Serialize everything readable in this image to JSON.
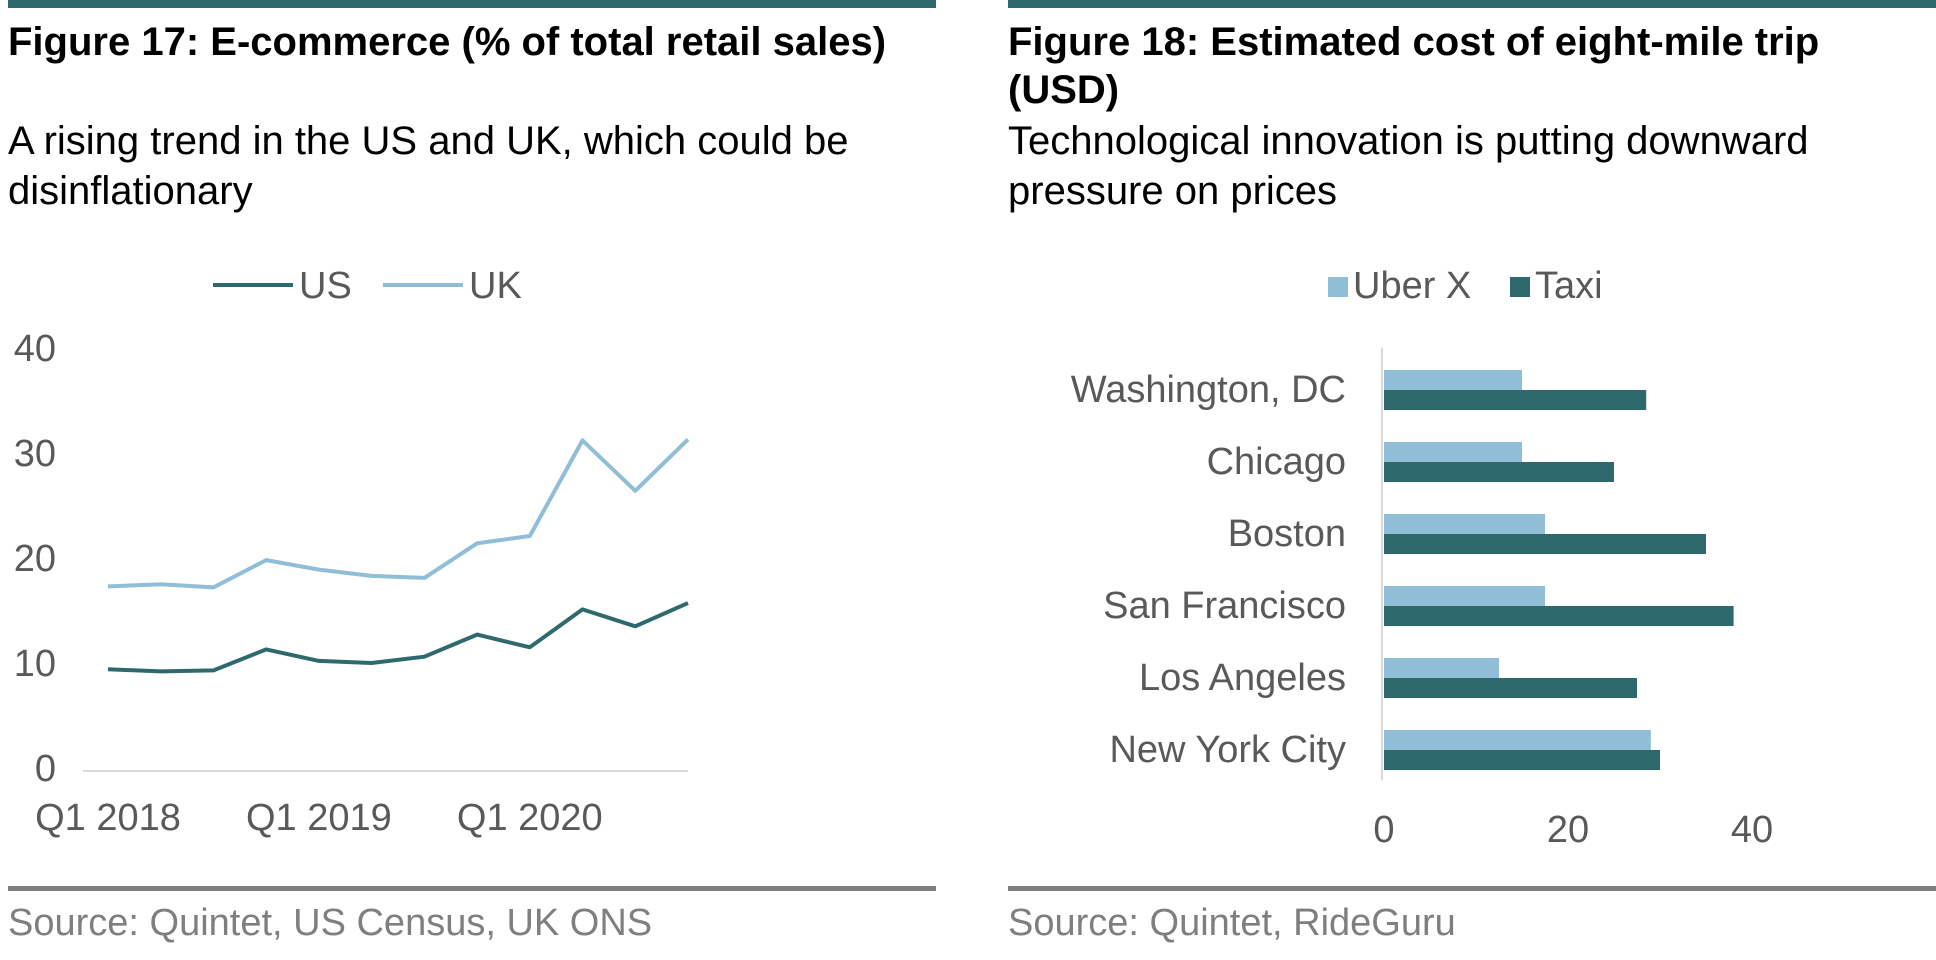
{
  "colors": {
    "rule": "#2E6A6D",
    "footer_rule": "#7F7F7F",
    "source_text": "#7F7F7F",
    "axis_text": "#595959",
    "axis_line": "#D9D9D9",
    "dark_teal": "#2E6A6D",
    "light_blue": "#8FBED6"
  },
  "figures": [
    {
      "title": "Figure 17: E-commerce (% of total retail sales)",
      "subtitle": "A rising trend in the US and UK, which could be disinflationary",
      "source": "Source: Quintet, US Census, UK ONS",
      "chart_data": {
        "type": "line",
        "x": [
          "Q1 2018",
          "Q2 2018",
          "Q3 2018",
          "Q4 2018",
          "Q1 2019",
          "Q2 2019",
          "Q3 2019",
          "Q4 2019",
          "Q1 2020",
          "Q2 2020",
          "Q3 2020",
          "Q4 2020"
        ],
        "x_tick_labels": [
          "Q1 2018",
          "Q1 2019",
          "Q1 2020"
        ],
        "y_ticks": [
          "0",
          "10",
          "20",
          "30",
          "40"
        ],
        "ylim": [
          0,
          40
        ],
        "legend_position": "top",
        "gridlines": false,
        "series": [
          {
            "name": "US",
            "color": "#2E6A6D",
            "values": [
              9.4,
              9.2,
              9.3,
              11.3,
              10.2,
              10.0,
              10.6,
              12.7,
              11.5,
              15.1,
              13.5,
              15.7
            ]
          },
          {
            "name": "UK",
            "color": "#8FBED6",
            "values": [
              17.3,
              17.5,
              17.2,
              19.8,
              18.9,
              18.3,
              18.1,
              21.4,
              22.1,
              31.2,
              26.4,
              31.3
            ]
          }
        ]
      }
    },
    {
      "title": "Figure 18: Estimated cost of eight-mile trip (USD)",
      "subtitle": "Technological innovation is putting downward pressure on prices",
      "source": "Source: Quintet, RideGuru",
      "chart_data": {
        "type": "bar",
        "orientation": "horizontal",
        "categories": [
          "Washington, DC",
          "Chicago",
          "Boston",
          "San Francisco",
          "Los Angeles",
          "New York City"
        ],
        "x_ticks": [
          "0",
          "20",
          "40"
        ],
        "xlim": [
          0,
          40
        ],
        "legend_position": "top",
        "gridlines": false,
        "series": [
          {
            "name": "Uber X",
            "color": "#8FBED6",
            "values": [
              15,
              15,
              17.5,
              17.5,
              12.5,
              29
            ]
          },
          {
            "name": "Taxi",
            "color": "#2E6A6D",
            "values": [
              28.5,
              25,
              35,
              38,
              27.5,
              30
            ]
          }
        ]
      }
    }
  ]
}
